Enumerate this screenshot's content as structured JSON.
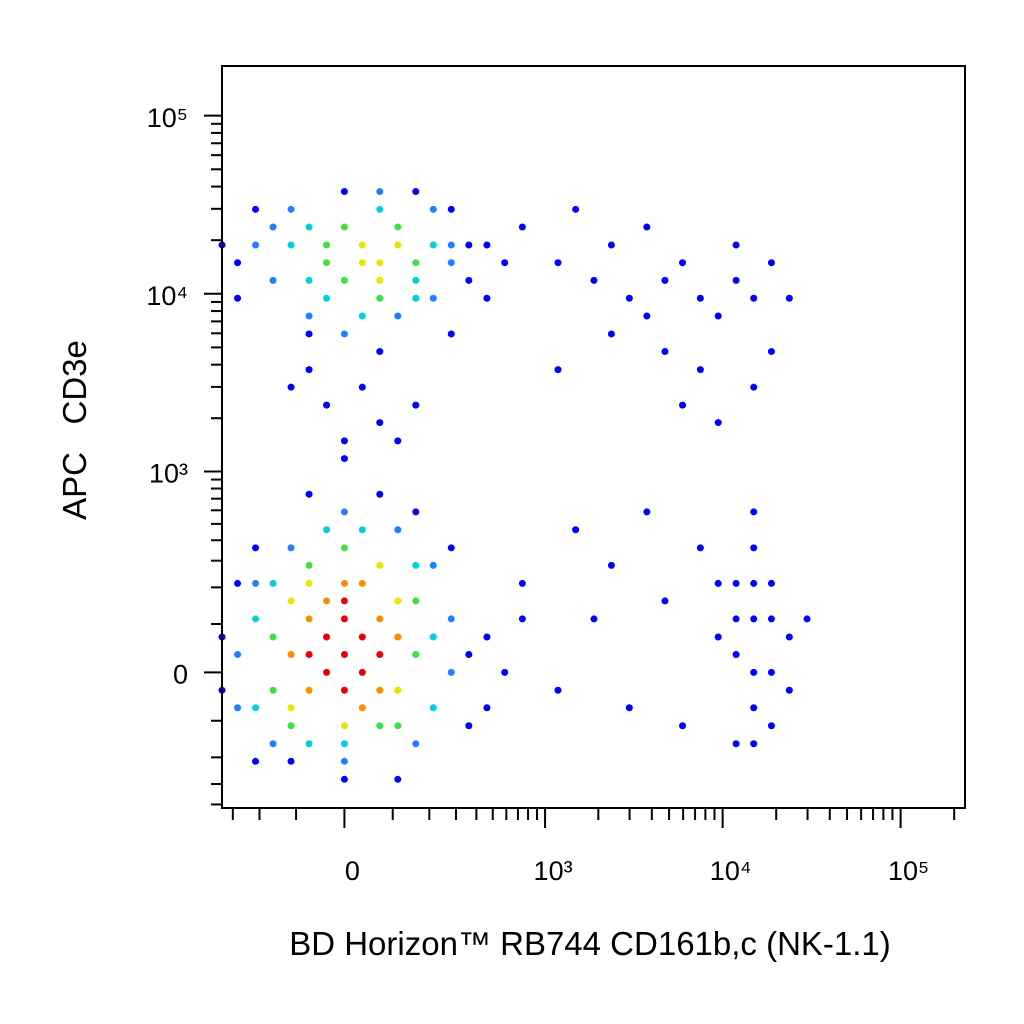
{
  "chart_data": {
    "type": "scatter",
    "xlabel": "BD Horizon™ RB744 CD161b,c (NK-1.1)",
    "ylabel": "APC   CD3e",
    "xscale": "biexponential",
    "yscale": "biexponential",
    "xlim": [
      -350,
      230000
    ],
    "ylim": [
      -420,
      190000
    ],
    "xticks": [
      0,
      {
        "value": 1000,
        "label": "10³"
      },
      {
        "value": 10000,
        "label": "10⁴"
      },
      {
        "value": 100000,
        "label": "10⁵"
      }
    ],
    "yticks": [
      0,
      {
        "value": 1000,
        "label": "10³"
      },
      {
        "value": 10000,
        "label": "10⁴"
      },
      {
        "value": 100000,
        "label": "10⁵"
      }
    ],
    "xminorticks": [
      -300,
      -200,
      -100,
      100,
      200,
      300,
      400,
      500,
      600,
      700,
      800,
      900,
      2000,
      3000,
      4000,
      5000,
      6000,
      7000,
      8000,
      9000,
      20000,
      30000,
      40000,
      50000,
      60000,
      70000,
      80000,
      90000,
      200000
    ],
    "yminorticks": [
      -400,
      -300,
      -200,
      -100,
      100,
      200,
      300,
      400,
      500,
      600,
      700,
      800,
      900,
      2000,
      3000,
      4000,
      5000,
      6000,
      7000,
      8000,
      9000,
      20000,
      30000,
      40000,
      50000,
      60000,
      70000,
      80000,
      90000
    ],
    "series": [
      {
        "color": "#0000ff",
        "x": [
          -350,
          -350,
          360,
          360,
          -280,
          280,
          -213,
          -71,
          71,
          159,
          -112,
          112,
          0,
          462,
          462,
          -213,
          587,
          742,
          0,
          71,
          -35,
          112,
          35,
          -71,
          159,
          71,
          0,
          -112,
          -350,
          360,
          -280,
          360,
          -213,
          280,
          0,
          159,
          462,
          462,
          -280,
          280,
          -71,
          587,
          742,
          1184,
          1890,
          2370,
          2990,
          3750,
          4740,
          5950,
          7500,
          9440,
          11900,
          14950,
          18800,
          23700,
          2370,
          4740,
          7500,
          1490,
          3750,
          11900,
          14950,
          9440,
          5950,
          1184,
          18800,
          742,
          1184,
          1890,
          2370,
          2990,
          4740,
          1490,
          3750,
          5950,
          7500,
          9440,
          11900,
          14950,
          18800,
          23700,
          14950,
          11900,
          18800,
          14950,
          11900,
          18800,
          23700,
          14950,
          29800,
          9440,
          14950,
          18800,
          11900,
          14950,
          14950
        ],
        "values": [
          71,
          -35,
          35,
          -112,
          213,
          360,
          360,
          742,
          742,
          587,
          -213,
          -280,
          -280,
          71,
          -71,
          -213,
          0,
          112,
          1184,
          1890,
          2370,
          1490,
          2990,
          3750,
          2370,
          4740,
          1490,
          2990,
          18800,
          18800,
          14950,
          11900,
          29800,
          29800,
          37500,
          37500,
          18800,
          9440,
          9440,
          5950,
          5950,
          14950,
          23700,
          14950,
          11900,
          18800,
          9440,
          7500,
          11900,
          14950,
          9440,
          7500,
          11900,
          9440,
          14950,
          9440,
          5950,
          4740,
          3750,
          29800,
          23700,
          18800,
          2990,
          1890,
          2370,
          3750,
          4740,
          213,
          -35,
          112,
          280,
          -71,
          159,
          462,
          587,
          -112,
          360,
          71,
          35,
          112,
          0,
          71,
          -71,
          213,
          213,
          360,
          -159,
          -112,
          -35,
          587,
          112,
          213,
          0,
          112,
          112,
          213,
          -159
        ]
      },
      {
        "color": "#2080ff",
        "x": [
          -280,
          280,
          -280,
          280,
          -213,
          213,
          -112,
          112,
          0,
          -159,
          159,
          0,
          -213,
          280,
          -159,
          213,
          0,
          71,
          -112,
          280,
          -159,
          213,
          112,
          -71
        ],
        "values": [
          35,
          0,
          -71,
          112,
          213,
          280,
          360,
          462,
          587,
          -159,
          -159,
          -213,
          18800,
          18800,
          11900,
          9440,
          5950,
          37500,
          29800,
          14950,
          23700,
          29800,
          7500,
          7500
        ]
      },
      {
        "color": "#00d0e0",
        "x": [
          -213,
          213,
          -213,
          213,
          -159,
          159,
          -35,
          35,
          0,
          -71,
          -112,
          213,
          -71,
          159,
          35,
          71,
          -71,
          159,
          -35
        ],
        "values": [
          112,
          71,
          -71,
          -71,
          213,
          280,
          462,
          462,
          -159,
          -159,
          18800,
          18800,
          11900,
          9440,
          7500,
          29800,
          23700,
          11900,
          9440
        ]
      },
      {
        "color": "#40e040",
        "x": [
          -159,
          159,
          -159,
          159,
          -71,
          0,
          71,
          -112,
          112,
          -35,
          0,
          112,
          159,
          0,
          71,
          -35
        ],
        "values": [
          71,
          35,
          -35,
          159,
          280,
          360,
          -112,
          -112,
          -112,
          18800,
          23700,
          23700,
          14950,
          11900,
          9440,
          14950
        ]
      },
      {
        "color": "#e6e600",
        "x": [
          -112,
          112,
          -112,
          0,
          112,
          -71,
          71,
          35,
          71,
          112,
          71,
          35
        ],
        "values": [
          159,
          159,
          -71,
          -112,
          -35,
          213,
          280,
          18800,
          14950,
          18800,
          11900,
          14950
        ]
      },
      {
        "color": "#ff8c00",
        "x": [
          -71,
          71,
          -71,
          71,
          0,
          -112,
          112,
          35,
          -35,
          35
        ],
        "values": [
          112,
          112,
          -35,
          -35,
          213,
          35,
          71,
          -71,
          159,
          213
        ]
      },
      {
        "color": "#e8000b",
        "x": [
          0,
          -35,
          35,
          0,
          -35,
          35,
          0,
          -71,
          71,
          0
        ],
        "values": [
          35,
          71,
          0,
          112,
          0,
          71,
          -35,
          35,
          35,
          159
        ]
      }
    ]
  }
}
